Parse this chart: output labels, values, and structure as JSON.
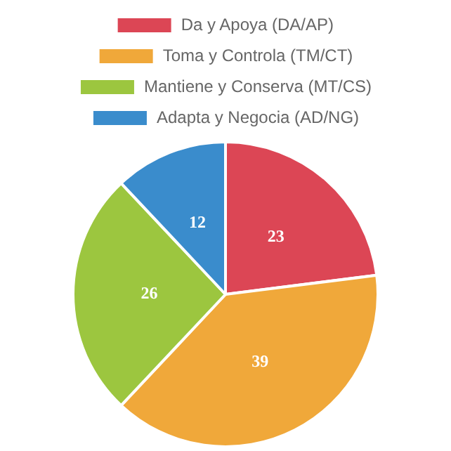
{
  "chart_data": {
    "type": "pie",
    "categories": [
      "Da y Apoya (DA/AP)",
      "Toma y Controla (TM/CT)",
      "Mantiene y Conserva (MT/CS)",
      "Adapta y Negocia (AD/NG)"
    ],
    "values": [
      23,
      39,
      26,
      12
    ],
    "colors": [
      "#dc4655",
      "#f0a83a",
      "#9cc63f",
      "#3a8ccc"
    ],
    "legend": "top",
    "data_labels": true
  }
}
